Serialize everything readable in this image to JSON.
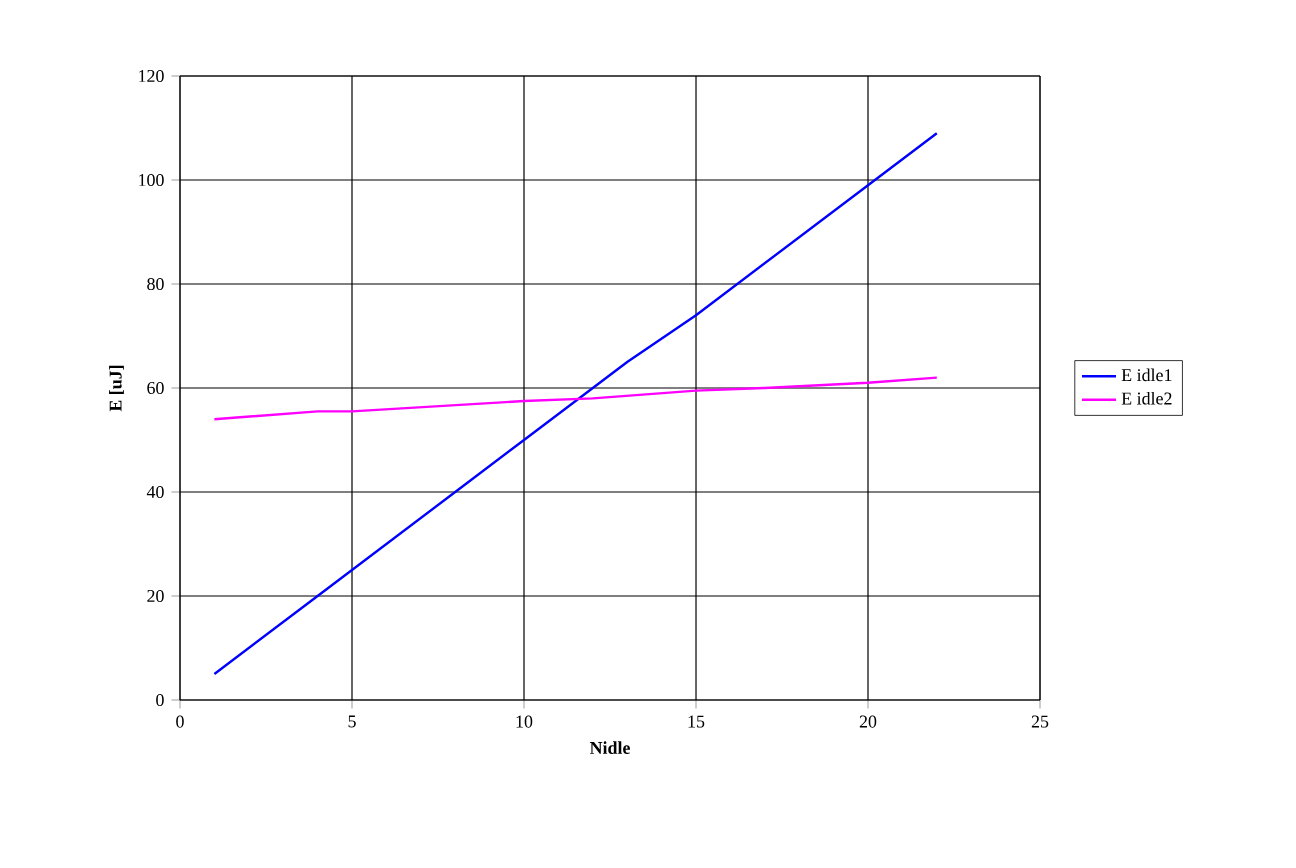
{
  "chart_data": {
    "type": "line",
    "xlabel": "Nidle",
    "ylabel": "E [uJ]",
    "xlim": [
      0,
      25
    ],
    "xticks": [
      0,
      5,
      10,
      15,
      20,
      25
    ],
    "ylim": [
      0,
      120
    ],
    "yticks": [
      0,
      20,
      40,
      60,
      80,
      100,
      120
    ],
    "grid": true,
    "legend": "right",
    "marker": "none",
    "line_style": "solid",
    "series": [
      {
        "name": "E idle1",
        "color": "#0000ff",
        "x": [
          1,
          4,
          8,
          10,
          13,
          15,
          20,
          22
        ],
        "values": [
          5,
          20,
          40,
          50,
          65,
          74,
          99,
          109
        ]
      },
      {
        "name": "E idle2",
        "color": "#ff00ff",
        "x": [
          1,
          4,
          5,
          10,
          12,
          15,
          17,
          20,
          22
        ],
        "values": [
          54,
          55.5,
          55.5,
          57.5,
          58,
          59.5,
          60,
          61,
          62
        ]
      }
    ]
  }
}
